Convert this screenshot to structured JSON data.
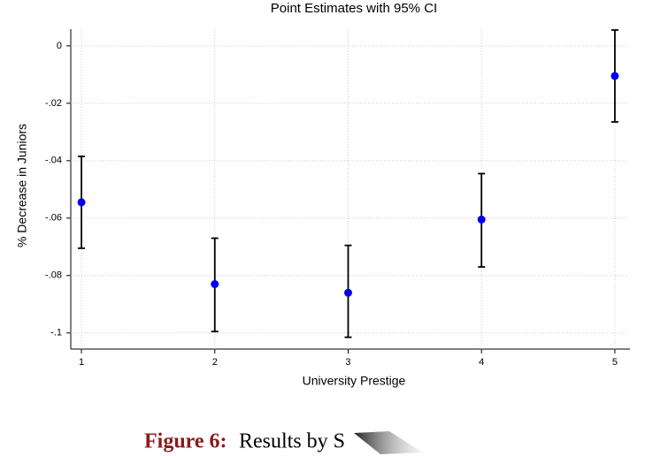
{
  "chart_data": {
    "type": "errorbar",
    "title": "Point Estimates with 95% CI",
    "x_label": "University Prestige",
    "y_label": "% Decrease in Juniors",
    "x": [
      1,
      2,
      3,
      4,
      5
    ],
    "values": [
      -0.0545,
      -0.083,
      -0.086,
      -0.0605,
      -0.0105
    ],
    "lower": [
      -0.0705,
      -0.0995,
      -0.1015,
      -0.077,
      -0.0265
    ],
    "upper": [
      -0.0385,
      -0.067,
      -0.0695,
      -0.0445,
      0.0055
    ],
    "color": "#0000ee",
    "bar_color": "#000000",
    "xlim": [
      0.92,
      5.1
    ],
    "xticks": [
      1,
      2,
      3,
      4,
      5
    ],
    "ylim": [
      -0.105,
      0.0055
    ],
    "yticks": [
      {
        "value": 0,
        "label": "0"
      },
      {
        "value": -0.02,
        "label": "-.02"
      },
      {
        "value": -0.04,
        "label": "-.04"
      },
      {
        "value": -0.06,
        "label": "-.06"
      },
      {
        "value": -0.08,
        "label": "-.08"
      },
      {
        "value": -0.1,
        "label": "-.1"
      }
    ],
    "grid": true
  },
  "caption": {
    "label": "Figure 6:",
    "text": "Results by S"
  }
}
